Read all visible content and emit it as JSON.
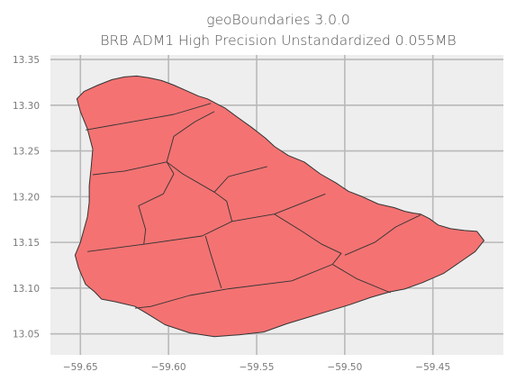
{
  "title": {
    "line1": "geoBoundaries 3.0.0",
    "line2": "BRB ADM1 High Precision Unstandardized 0.055MB"
  },
  "colors": {
    "background": "#ffffff",
    "plot_background": "#eeeeee",
    "grid": "#b9b9b9",
    "region_fill": "#f47272",
    "region_edge": "#333333",
    "text": "#555555"
  },
  "chart_data": {
    "type": "map",
    "title": "geoBoundaries 3.0.0\nBRB ADM1 High Precision Unstandardized 0.055MB",
    "xlabel": "",
    "ylabel": "",
    "xlim": [
      -59.667,
      -59.41
    ],
    "ylim": [
      13.027,
      13.355
    ],
    "grid": true,
    "x_ticks": [
      -59.65,
      -59.6,
      -59.55,
      -59.5,
      -59.45
    ],
    "y_ticks": [
      13.05,
      13.1,
      13.15,
      13.2,
      13.25,
      13.3,
      13.35
    ],
    "x_tick_labels": [
      "−59.65",
      "−59.60",
      "−59.55",
      "−59.50",
      "−59.45"
    ],
    "y_tick_labels": [
      "13.05",
      "13.10",
      "13.15",
      "13.20",
      "13.25",
      "13.30",
      "13.35"
    ],
    "outline": [
      [
        -59.652,
        13.307
      ],
      [
        -59.648,
        13.315
      ],
      [
        -59.64,
        13.322
      ],
      [
        -59.632,
        13.328
      ],
      [
        -59.625,
        13.331
      ],
      [
        -59.618,
        13.332
      ],
      [
        -59.611,
        13.33
      ],
      [
        -59.604,
        13.327
      ],
      [
        -59.597,
        13.322
      ],
      [
        -59.59,
        13.316
      ],
      [
        -59.583,
        13.31
      ],
      [
        -59.578,
        13.307
      ],
      [
        -59.574,
        13.303
      ],
      [
        -59.568,
        13.297
      ],
      [
        -59.561,
        13.287
      ],
      [
        -59.553,
        13.276
      ],
      [
        -59.545,
        13.264
      ],
      [
        -59.54,
        13.255
      ],
      [
        -59.532,
        13.245
      ],
      [
        -59.523,
        13.238
      ],
      [
        -59.514,
        13.225
      ],
      [
        -59.505,
        13.215
      ],
      [
        -59.498,
        13.206
      ],
      [
        -59.49,
        13.2
      ],
      [
        -59.481,
        13.192
      ],
      [
        -59.472,
        13.188
      ],
      [
        -59.466,
        13.184
      ],
      [
        -59.461,
        13.182
      ],
      [
        -59.457,
        13.181
      ],
      [
        -59.452,
        13.176
      ],
      [
        -59.447,
        13.169
      ],
      [
        -59.44,
        13.165
      ],
      [
        -59.432,
        13.163
      ],
      [
        -59.425,
        13.162
      ],
      [
        -59.421,
        13.152
      ],
      [
        -59.426,
        13.14
      ],
      [
        -59.435,
        13.128
      ],
      [
        -59.444,
        13.116
      ],
      [
        -59.456,
        13.106
      ],
      [
        -59.466,
        13.099
      ],
      [
        -59.474,
        13.096
      ],
      [
        -59.485,
        13.09
      ],
      [
        -59.497,
        13.082
      ],
      [
        -59.509,
        13.075
      ],
      [
        -59.521,
        13.068
      ],
      [
        -59.533,
        13.061
      ],
      [
        -59.546,
        13.052
      ],
      [
        -59.56,
        13.049
      ],
      [
        -59.574,
        13.047
      ],
      [
        -59.588,
        13.051
      ],
      [
        -59.602,
        13.06
      ],
      [
        -59.612,
        13.072
      ],
      [
        -59.619,
        13.08
      ],
      [
        -59.63,
        13.085
      ],
      [
        -59.638,
        13.088
      ],
      [
        -59.642,
        13.096
      ],
      [
        -59.647,
        13.104
      ],
      [
        -59.649,
        13.113
      ],
      [
        -59.651,
        13.122
      ],
      [
        -59.653,
        13.136
      ],
      [
        -59.65,
        13.15
      ],
      [
        -59.648,
        13.164
      ],
      [
        -59.646,
        13.178
      ],
      [
        -59.645,
        13.194
      ],
      [
        -59.645,
        13.212
      ],
      [
        -59.644,
        13.23
      ],
      [
        -59.643,
        13.252
      ],
      [
        -59.646,
        13.274
      ],
      [
        -59.65,
        13.293
      ],
      [
        -59.652,
        13.307
      ]
    ],
    "boundaries": [
      [
        [
          -59.647,
          13.273
        ],
        [
          -59.597,
          13.29
        ],
        [
          -59.576,
          13.302
        ]
      ],
      [
        [
          -59.574,
          13.293
        ],
        [
          -59.585,
          13.282
        ],
        [
          -59.597,
          13.266
        ],
        [
          -59.601,
          13.238
        ],
        [
          -59.597,
          13.225
        ]
      ],
      [
        [
          -59.643,
          13.224
        ],
        [
          -59.625,
          13.228
        ],
        [
          -59.601,
          13.238
        ]
      ],
      [
        [
          -59.601,
          13.238
        ],
        [
          -59.592,
          13.225
        ],
        [
          -59.574,
          13.205
        ],
        [
          -59.566,
          13.222
        ],
        [
          -59.544,
          13.233
        ]
      ],
      [
        [
          -59.574,
          13.205
        ],
        [
          -59.567,
          13.195
        ],
        [
          -59.564,
          13.173
        ]
      ],
      [
        [
          -59.597,
          13.225
        ],
        [
          -59.603,
          13.203
        ],
        [
          -59.617,
          13.19
        ],
        [
          -59.613,
          13.164
        ],
        [
          -59.614,
          13.148
        ]
      ],
      [
        [
          -59.646,
          13.14
        ],
        [
          -59.614,
          13.148
        ],
        [
          -59.581,
          13.157
        ],
        [
          -59.564,
          13.173
        ],
        [
          -59.54,
          13.181
        ],
        [
          -59.511,
          13.203
        ]
      ],
      [
        [
          -59.54,
          13.181
        ],
        [
          -59.525,
          13.163
        ],
        [
          -59.513,
          13.148
        ],
        [
          -59.502,
          13.138
        ],
        [
          -59.507,
          13.126
        ]
      ],
      [
        [
          -59.5,
          13.136
        ],
        [
          -59.483,
          13.15
        ],
        [
          -59.471,
          13.167
        ],
        [
          -59.457,
          13.18
        ]
      ],
      [
        [
          -59.579,
          13.157
        ],
        [
          -59.576,
          13.137
        ],
        [
          -59.57,
          13.1
        ]
      ],
      [
        [
          -59.567,
          13.099
        ],
        [
          -59.53,
          13.108
        ],
        [
          -59.507,
          13.126
        ]
      ],
      [
        [
          -59.507,
          13.126
        ],
        [
          -59.493,
          13.11
        ],
        [
          -59.474,
          13.095
        ]
      ],
      [
        [
          -59.567,
          13.099
        ],
        [
          -59.588,
          13.092
        ],
        [
          -59.61,
          13.08
        ],
        [
          -59.619,
          13.078
        ]
      ]
    ]
  }
}
